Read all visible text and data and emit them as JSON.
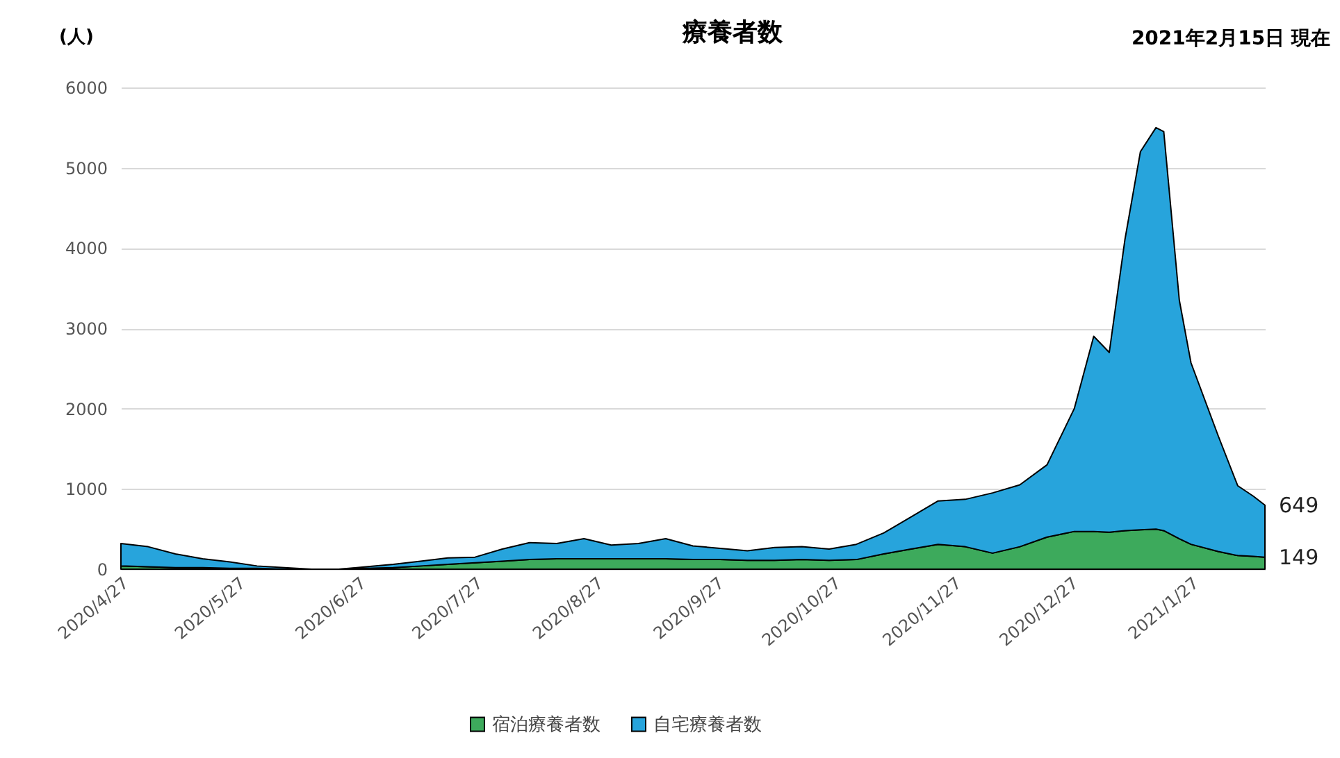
{
  "chart_data": {
    "type": "area",
    "stacked": true,
    "title": "療養者数",
    "ylabel": "(人)",
    "annotations": [
      "2021年2月15日 現在"
    ],
    "x": [
      "2020-04-27",
      "2020-05-04",
      "2020-05-11",
      "2020-05-18",
      "2020-05-25",
      "2020-06-01",
      "2020-06-08",
      "2020-06-15",
      "2020-06-22",
      "2020-06-29",
      "2020-07-06",
      "2020-07-13",
      "2020-07-20",
      "2020-07-27",
      "2020-08-03",
      "2020-08-10",
      "2020-08-17",
      "2020-08-24",
      "2020-08-31",
      "2020-09-07",
      "2020-09-14",
      "2020-09-21",
      "2020-09-28",
      "2020-10-05",
      "2020-10-12",
      "2020-10-19",
      "2020-10-26",
      "2020-11-02",
      "2020-11-09",
      "2020-11-16",
      "2020-11-23",
      "2020-11-30",
      "2020-12-07",
      "2020-12-14",
      "2020-12-21",
      "2020-12-28",
      "2021-01-02",
      "2021-01-06",
      "2021-01-10",
      "2021-01-14",
      "2021-01-18",
      "2021-01-20",
      "2021-01-24",
      "2021-01-27",
      "2021-02-03",
      "2021-02-08",
      "2021-02-12",
      "2021-02-15"
    ],
    "series": [
      {
        "name": "宿泊療養者数",
        "color": "#3daa5c",
        "values": [
          40,
          30,
          20,
          20,
          10,
          10,
          0,
          0,
          0,
          10,
          20,
          40,
          60,
          80,
          100,
          120,
          130,
          130,
          130,
          130,
          130,
          120,
          120,
          110,
          110,
          120,
          110,
          120,
          190,
          250,
          310,
          280,
          200,
          280,
          400,
          470,
          470,
          460,
          480,
          490,
          500,
          480,
          380,
          310,
          220,
          170,
          160,
          149
        ],
        "value_labels": [
          null,
          null,
          null,
          null,
          null,
          null,
          null,
          null,
          null,
          null,
          null,
          null,
          null,
          null,
          null,
          null,
          null,
          null,
          null,
          null,
          null,
          null,
          null,
          null,
          null,
          null,
          null,
          null,
          null,
          null,
          null,
          null,
          null,
          null,
          null,
          null,
          null,
          null,
          null,
          null,
          null,
          null,
          null,
          null,
          null,
          null,
          null,
          "149"
        ]
      },
      {
        "name": "自宅療養者数",
        "color": "#27a4dc",
        "values": [
          280,
          250,
          170,
          110,
          80,
          30,
          20,
          0,
          0,
          20,
          40,
          60,
          80,
          70,
          150,
          210,
          190,
          250,
          170,
          190,
          250,
          170,
          140,
          120,
          160,
          160,
          140,
          190,
          260,
          400,
          540,
          590,
          750,
          770,
          900,
          1530,
          2430,
          2240,
          3620,
          4710,
          5000,
          4970,
          2970,
          2260,
          1440,
          870,
          750,
          649
        ],
        "value_labels": [
          null,
          null,
          null,
          null,
          null,
          null,
          null,
          null,
          null,
          null,
          null,
          null,
          null,
          null,
          null,
          null,
          null,
          null,
          null,
          null,
          null,
          null,
          null,
          null,
          null,
          null,
          null,
          null,
          null,
          null,
          null,
          null,
          null,
          null,
          null,
          null,
          null,
          null,
          null,
          null,
          null,
          null,
          null,
          null,
          null,
          null,
          null,
          "649"
        ]
      }
    ],
    "xlim": [
      "2020-04-27",
      "2021-02-15"
    ],
    "xticks": [
      {
        "value": "2020-04-27",
        "label": "2020/4/27"
      },
      {
        "value": "2020-05-27",
        "label": "2020/5/27"
      },
      {
        "value": "2020-06-27",
        "label": "2020/6/27"
      },
      {
        "value": "2020-07-27",
        "label": "2020/7/27"
      },
      {
        "value": "2020-08-27",
        "label": "2020/8/27"
      },
      {
        "value": "2020-09-27",
        "label": "2020/9/27"
      },
      {
        "value": "2020-10-27",
        "label": "2020/10/27"
      },
      {
        "value": "2020-11-27",
        "label": "2020/11/27"
      },
      {
        "value": "2020-12-27",
        "label": "2020/12/27"
      },
      {
        "value": "2021-01-27",
        "label": "2021/1/27"
      }
    ],
    "ylim": [
      0,
      6000
    ],
    "yticks": [
      0,
      1000,
      2000,
      3000,
      4000,
      5000,
      6000
    ],
    "grid": "y",
    "legend": "bottom"
  }
}
